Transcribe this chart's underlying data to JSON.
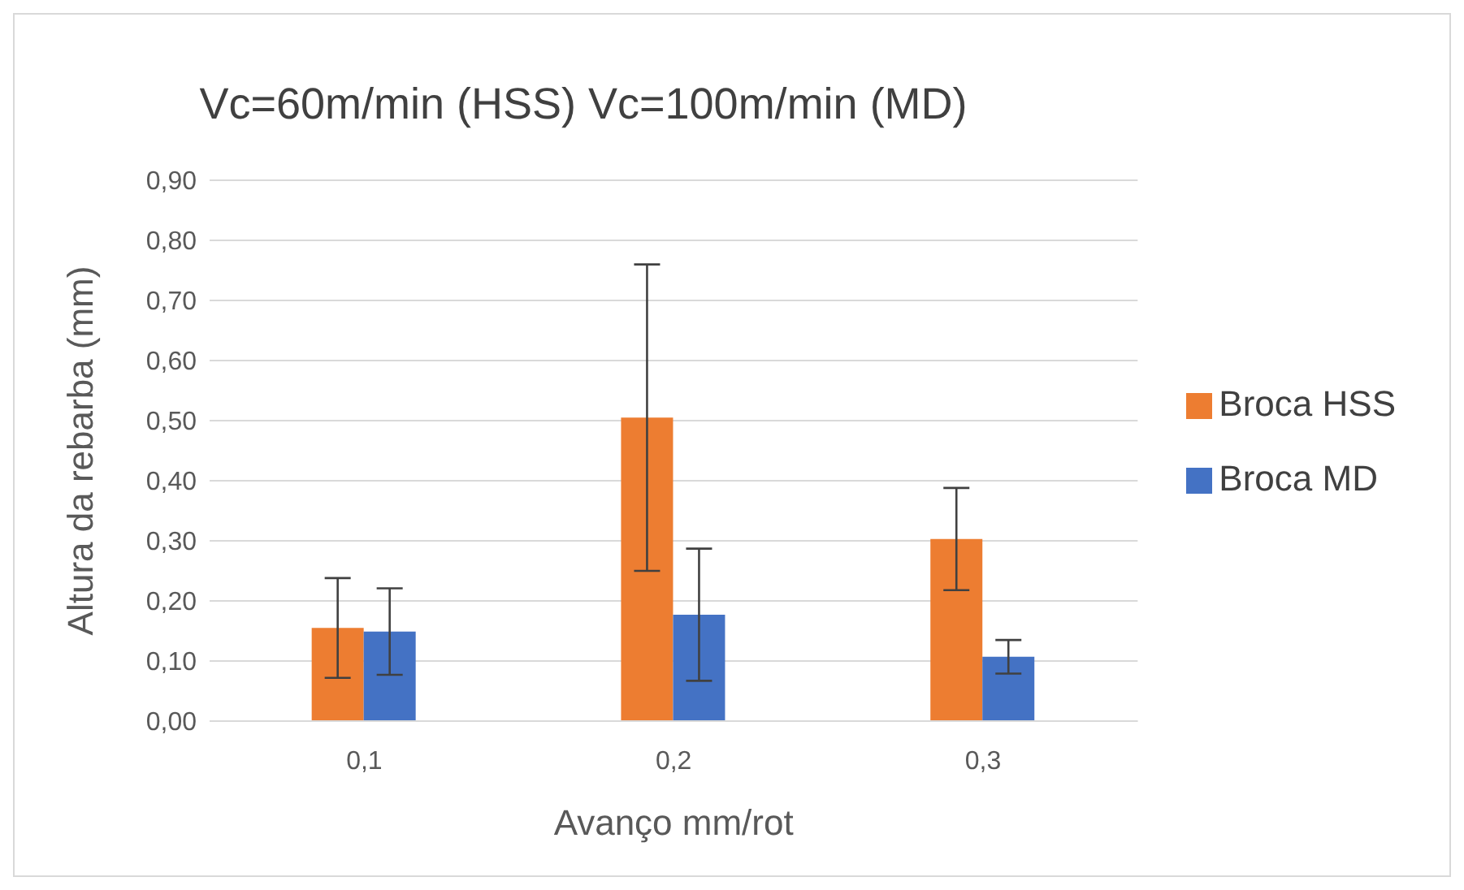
{
  "chart_data": {
    "type": "bar",
    "title": "Vc=60m/min (HSS) Vc=100m/min (MD)",
    "xlabel": "Avanço mm/rot",
    "ylabel": "Altura da rebarba (mm)",
    "categories": [
      "0,1",
      "0,2",
      "0,3"
    ],
    "series": [
      {
        "name": "Broca HSS",
        "color": "#ed7d31",
        "values": [
          0.155,
          0.505,
          0.303
        ],
        "errors": [
          0.083,
          0.255,
          0.085
        ]
      },
      {
        "name": "Broca MD",
        "color": "#4472c4",
        "values": [
          0.149,
          0.177,
          0.107
        ],
        "errors": [
          0.072,
          0.11,
          0.028
        ]
      }
    ],
    "ylim": [
      0,
      0.9
    ],
    "yticks": [
      {
        "value": 0,
        "label": "0,00"
      },
      {
        "value": 0.1,
        "label": "0,10"
      },
      {
        "value": 0.2,
        "label": "0,20"
      },
      {
        "value": 0.3,
        "label": "0,30"
      },
      {
        "value": 0.4,
        "label": "0,40"
      },
      {
        "value": 0.5,
        "label": "0,50"
      },
      {
        "value": 0.6,
        "label": "0,60"
      },
      {
        "value": 0.7,
        "label": "0,70"
      },
      {
        "value": 0.8,
        "label": "0,80"
      },
      {
        "value": 0.9,
        "label": "0,90"
      }
    ],
    "grid": "y",
    "legend": "right"
  }
}
